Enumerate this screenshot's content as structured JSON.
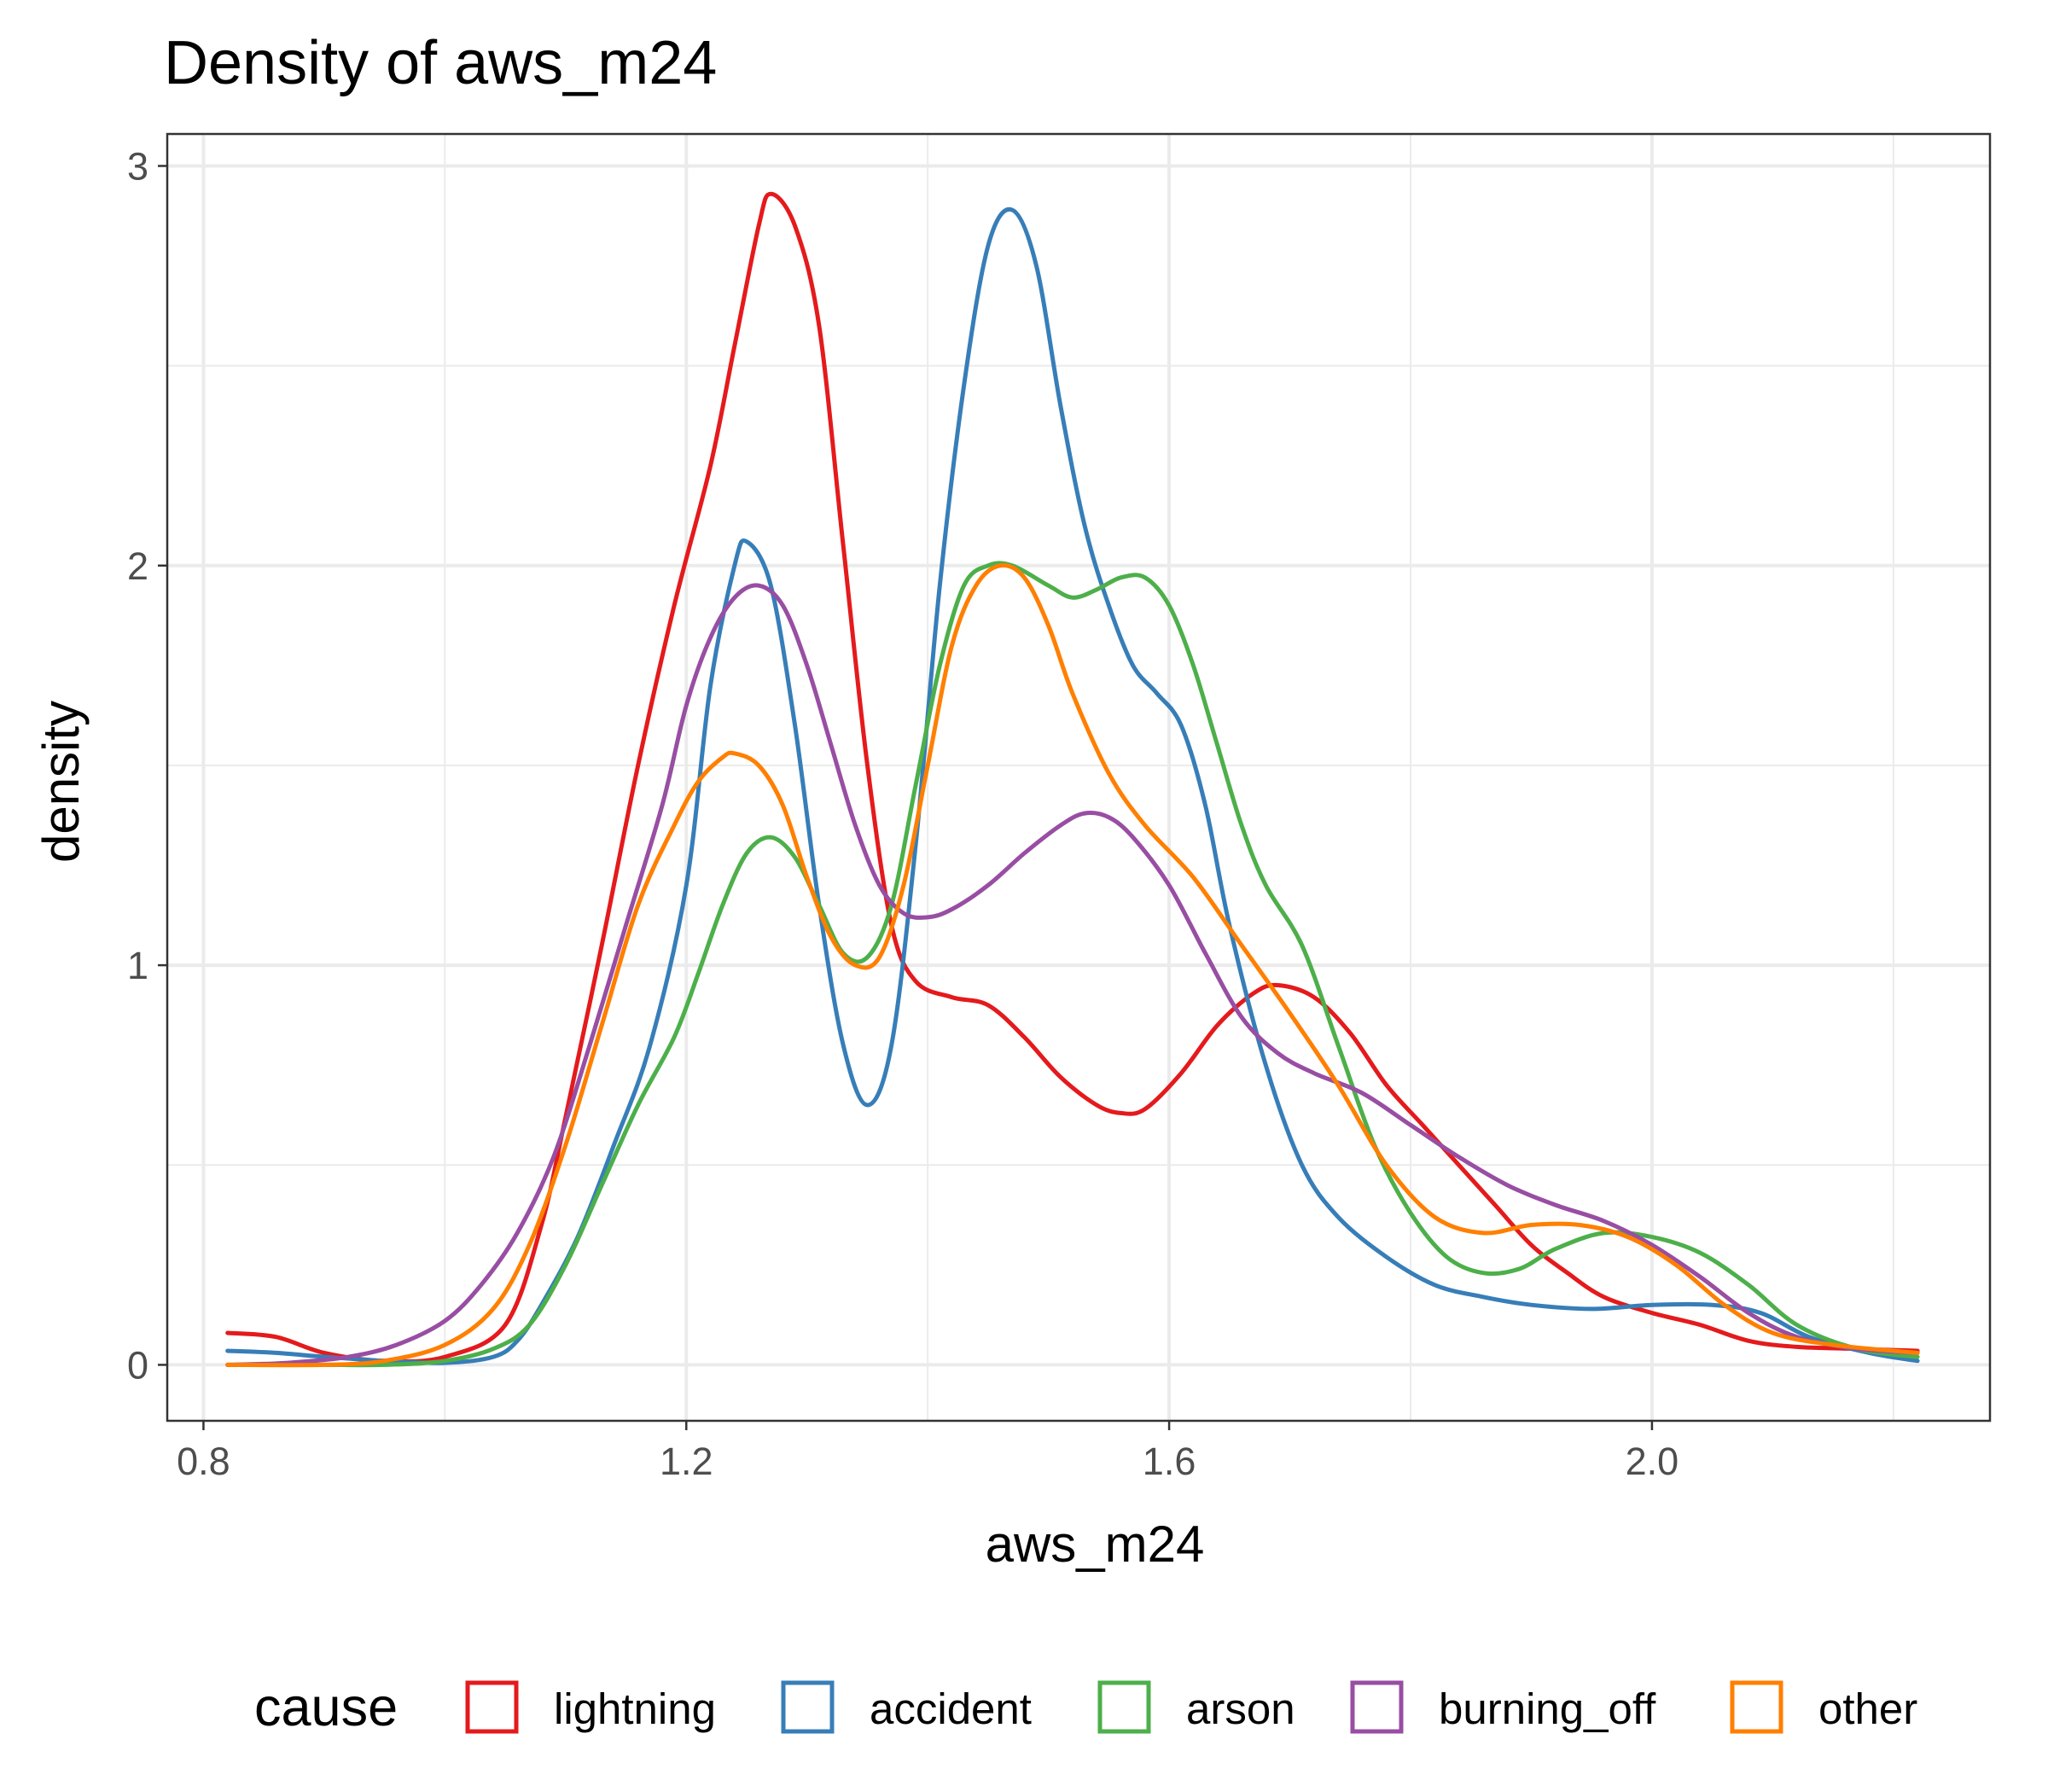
{
  "chart_data": {
    "type": "line",
    "title": "Density of aws_m24",
    "xlabel": "aws_m24",
    "ylabel": "density",
    "xlim": [
      0.77,
      2.28
    ],
    "ylim": [
      -0.14,
      3.08
    ],
    "x_ticks": [
      0.8,
      1.2,
      1.6,
      2.0
    ],
    "x_tick_labels": [
      "0.8",
      "1.2",
      "1.6",
      "2.0"
    ],
    "y_ticks": [
      0,
      1,
      2,
      3
    ],
    "y_tick_labels": [
      "0",
      "1",
      "2",
      "3"
    ],
    "grid": true,
    "legend": {
      "title": "cause",
      "position": "bottom"
    },
    "series": [
      {
        "name": "lightning",
        "color": "#e41a1c",
        "points": [
          [
            0.82,
            0.08
          ],
          [
            0.86,
            0.07
          ],
          [
            0.9,
            0.03
          ],
          [
            0.95,
            0.01
          ],
          [
            1.0,
            0.02
          ],
          [
            1.05,
            0.1
          ],
          [
            1.08,
            0.35
          ],
          [
            1.1,
            0.62
          ],
          [
            1.13,
            1.05
          ],
          [
            1.16,
            1.5
          ],
          [
            1.19,
            1.9
          ],
          [
            1.22,
            2.25
          ],
          [
            1.24,
            2.55
          ],
          [
            1.26,
            2.85
          ],
          [
            1.27,
            2.93
          ],
          [
            1.29,
            2.85
          ],
          [
            1.31,
            2.6
          ],
          [
            1.33,
            2.05
          ],
          [
            1.35,
            1.5
          ],
          [
            1.37,
            1.1
          ],
          [
            1.39,
            0.96
          ],
          [
            1.42,
            0.92
          ],
          [
            1.45,
            0.9
          ],
          [
            1.48,
            0.82
          ],
          [
            1.51,
            0.72
          ],
          [
            1.54,
            0.65
          ],
          [
            1.56,
            0.63
          ],
          [
            1.58,
            0.64
          ],
          [
            1.61,
            0.73
          ],
          [
            1.64,
            0.85
          ],
          [
            1.67,
            0.93
          ],
          [
            1.69,
            0.95
          ],
          [
            1.72,
            0.92
          ],
          [
            1.75,
            0.83
          ],
          [
            1.78,
            0.7
          ],
          [
            1.81,
            0.6
          ],
          [
            1.84,
            0.5
          ],
          [
            1.87,
            0.4
          ],
          [
            1.9,
            0.3
          ],
          [
            1.93,
            0.23
          ],
          [
            1.96,
            0.17
          ],
          [
            2.0,
            0.13
          ],
          [
            2.04,
            0.1
          ],
          [
            2.08,
            0.06
          ],
          [
            2.12,
            0.045
          ],
          [
            2.17,
            0.04
          ],
          [
            2.22,
            0.035
          ]
        ]
      },
      {
        "name": "accident",
        "color": "#377eb8",
        "points": [
          [
            0.82,
            0.035
          ],
          [
            0.86,
            0.03
          ],
          [
            0.9,
            0.02
          ],
          [
            0.95,
            0.01
          ],
          [
            1.0,
            0.005
          ],
          [
            1.04,
            0.02
          ],
          [
            1.06,
            0.06
          ],
          [
            1.08,
            0.15
          ],
          [
            1.11,
            0.32
          ],
          [
            1.14,
            0.55
          ],
          [
            1.17,
            0.8
          ],
          [
            1.2,
            1.2
          ],
          [
            1.22,
            1.7
          ],
          [
            1.24,
            2.0
          ],
          [
            1.25,
            2.06
          ],
          [
            1.27,
            1.95
          ],
          [
            1.29,
            1.6
          ],
          [
            1.31,
            1.15
          ],
          [
            1.33,
            0.8
          ],
          [
            1.35,
            0.65
          ],
          [
            1.37,
            0.8
          ],
          [
            1.39,
            1.3
          ],
          [
            1.41,
            1.95
          ],
          [
            1.43,
            2.45
          ],
          [
            1.45,
            2.8
          ],
          [
            1.47,
            2.89
          ],
          [
            1.49,
            2.75
          ],
          [
            1.51,
            2.4
          ],
          [
            1.53,
            2.1
          ],
          [
            1.55,
            1.9
          ],
          [
            1.57,
            1.75
          ],
          [
            1.59,
            1.68
          ],
          [
            1.61,
            1.6
          ],
          [
            1.63,
            1.4
          ],
          [
            1.65,
            1.1
          ],
          [
            1.68,
            0.75
          ],
          [
            1.71,
            0.5
          ],
          [
            1.74,
            0.37
          ],
          [
            1.78,
            0.27
          ],
          [
            1.82,
            0.2
          ],
          [
            1.86,
            0.17
          ],
          [
            1.9,
            0.15
          ],
          [
            1.95,
            0.14
          ],
          [
            2.0,
            0.15
          ],
          [
            2.05,
            0.15
          ],
          [
            2.09,
            0.13
          ],
          [
            2.13,
            0.07
          ],
          [
            2.18,
            0.03
          ],
          [
            2.22,
            0.01
          ]
        ]
      },
      {
        "name": "arson",
        "color": "#4daf4a",
        "points": [
          [
            0.82,
            0.0
          ],
          [
            0.9,
            0.0
          ],
          [
            0.95,
            0.0
          ],
          [
            1.0,
            0.01
          ],
          [
            1.04,
            0.04
          ],
          [
            1.07,
            0.1
          ],
          [
            1.1,
            0.25
          ],
          [
            1.13,
            0.45
          ],
          [
            1.16,
            0.65
          ],
          [
            1.19,
            0.82
          ],
          [
            1.21,
            0.98
          ],
          [
            1.23,
            1.15
          ],
          [
            1.25,
            1.28
          ],
          [
            1.27,
            1.32
          ],
          [
            1.29,
            1.27
          ],
          [
            1.31,
            1.15
          ],
          [
            1.33,
            1.03
          ],
          [
            1.35,
            1.02
          ],
          [
            1.37,
            1.15
          ],
          [
            1.39,
            1.45
          ],
          [
            1.41,
            1.75
          ],
          [
            1.43,
            1.95
          ],
          [
            1.45,
            2.0
          ],
          [
            1.47,
            2.0
          ],
          [
            1.5,
            1.95
          ],
          [
            1.52,
            1.92
          ],
          [
            1.54,
            1.94
          ],
          [
            1.56,
            1.97
          ],
          [
            1.58,
            1.97
          ],
          [
            1.6,
            1.9
          ],
          [
            1.62,
            1.75
          ],
          [
            1.64,
            1.55
          ],
          [
            1.66,
            1.35
          ],
          [
            1.68,
            1.2
          ],
          [
            1.71,
            1.05
          ],
          [
            1.74,
            0.8
          ],
          [
            1.77,
            0.55
          ],
          [
            1.8,
            0.38
          ],
          [
            1.83,
            0.27
          ],
          [
            1.86,
            0.23
          ],
          [
            1.89,
            0.24
          ],
          [
            1.92,
            0.29
          ],
          [
            1.96,
            0.33
          ],
          [
            2.0,
            0.32
          ],
          [
            2.04,
            0.28
          ],
          [
            2.08,
            0.2
          ],
          [
            2.12,
            0.1
          ],
          [
            2.17,
            0.04
          ],
          [
            2.22,
            0.02
          ]
        ]
      },
      {
        "name": "burning_off",
        "color": "#984ea3",
        "points": [
          [
            0.82,
            0.0
          ],
          [
            0.87,
            0.005
          ],
          [
            0.92,
            0.02
          ],
          [
            0.96,
            0.05
          ],
          [
            1.0,
            0.11
          ],
          [
            1.03,
            0.2
          ],
          [
            1.06,
            0.33
          ],
          [
            1.09,
            0.52
          ],
          [
            1.12,
            0.8
          ],
          [
            1.15,
            1.1
          ],
          [
            1.18,
            1.4
          ],
          [
            1.2,
            1.65
          ],
          [
            1.22,
            1.82
          ],
          [
            1.24,
            1.92
          ],
          [
            1.26,
            1.95
          ],
          [
            1.28,
            1.9
          ],
          [
            1.3,
            1.75
          ],
          [
            1.32,
            1.55
          ],
          [
            1.34,
            1.35
          ],
          [
            1.36,
            1.2
          ],
          [
            1.38,
            1.13
          ],
          [
            1.4,
            1.12
          ],
          [
            1.42,
            1.14
          ],
          [
            1.45,
            1.2
          ],
          [
            1.48,
            1.28
          ],
          [
            1.51,
            1.35
          ],
          [
            1.53,
            1.38
          ],
          [
            1.55,
            1.37
          ],
          [
            1.57,
            1.32
          ],
          [
            1.6,
            1.2
          ],
          [
            1.63,
            1.03
          ],
          [
            1.66,
            0.87
          ],
          [
            1.69,
            0.78
          ],
          [
            1.72,
            0.73
          ],
          [
            1.76,
            0.68
          ],
          [
            1.8,
            0.6
          ],
          [
            1.84,
            0.52
          ],
          [
            1.88,
            0.45
          ],
          [
            1.92,
            0.4
          ],
          [
            1.96,
            0.36
          ],
          [
            2.0,
            0.3
          ],
          [
            2.04,
            0.22
          ],
          [
            2.08,
            0.13
          ],
          [
            2.12,
            0.07
          ],
          [
            2.17,
            0.04
          ],
          [
            2.22,
            0.03
          ]
        ]
      },
      {
        "name": "other",
        "color": "#ff7f00",
        "points": [
          [
            0.82,
            0.0
          ],
          [
            0.9,
            0.0
          ],
          [
            0.95,
            0.01
          ],
          [
            1.0,
            0.05
          ],
          [
            1.04,
            0.14
          ],
          [
            1.07,
            0.3
          ],
          [
            1.1,
            0.55
          ],
          [
            1.13,
            0.85
          ],
          [
            1.16,
            1.15
          ],
          [
            1.19,
            1.35
          ],
          [
            1.21,
            1.46
          ],
          [
            1.23,
            1.52
          ],
          [
            1.24,
            1.53
          ],
          [
            1.26,
            1.5
          ],
          [
            1.28,
            1.4
          ],
          [
            1.3,
            1.22
          ],
          [
            1.32,
            1.07
          ],
          [
            1.34,
            1.0
          ],
          [
            1.36,
            1.02
          ],
          [
            1.38,
            1.2
          ],
          [
            1.4,
            1.5
          ],
          [
            1.42,
            1.8
          ],
          [
            1.44,
            1.95
          ],
          [
            1.46,
            2.0
          ],
          [
            1.48,
            1.97
          ],
          [
            1.5,
            1.85
          ],
          [
            1.52,
            1.68
          ],
          [
            1.55,
            1.48
          ],
          [
            1.58,
            1.35
          ],
          [
            1.62,
            1.22
          ],
          [
            1.66,
            1.05
          ],
          [
            1.7,
            0.88
          ],
          [
            1.74,
            0.7
          ],
          [
            1.78,
            0.5
          ],
          [
            1.82,
            0.37
          ],
          [
            1.86,
            0.33
          ],
          [
            1.9,
            0.35
          ],
          [
            1.94,
            0.35
          ],
          [
            1.98,
            0.32
          ],
          [
            2.02,
            0.25
          ],
          [
            2.06,
            0.15
          ],
          [
            2.1,
            0.08
          ],
          [
            2.15,
            0.05
          ],
          [
            2.22,
            0.03
          ]
        ]
      }
    ]
  }
}
